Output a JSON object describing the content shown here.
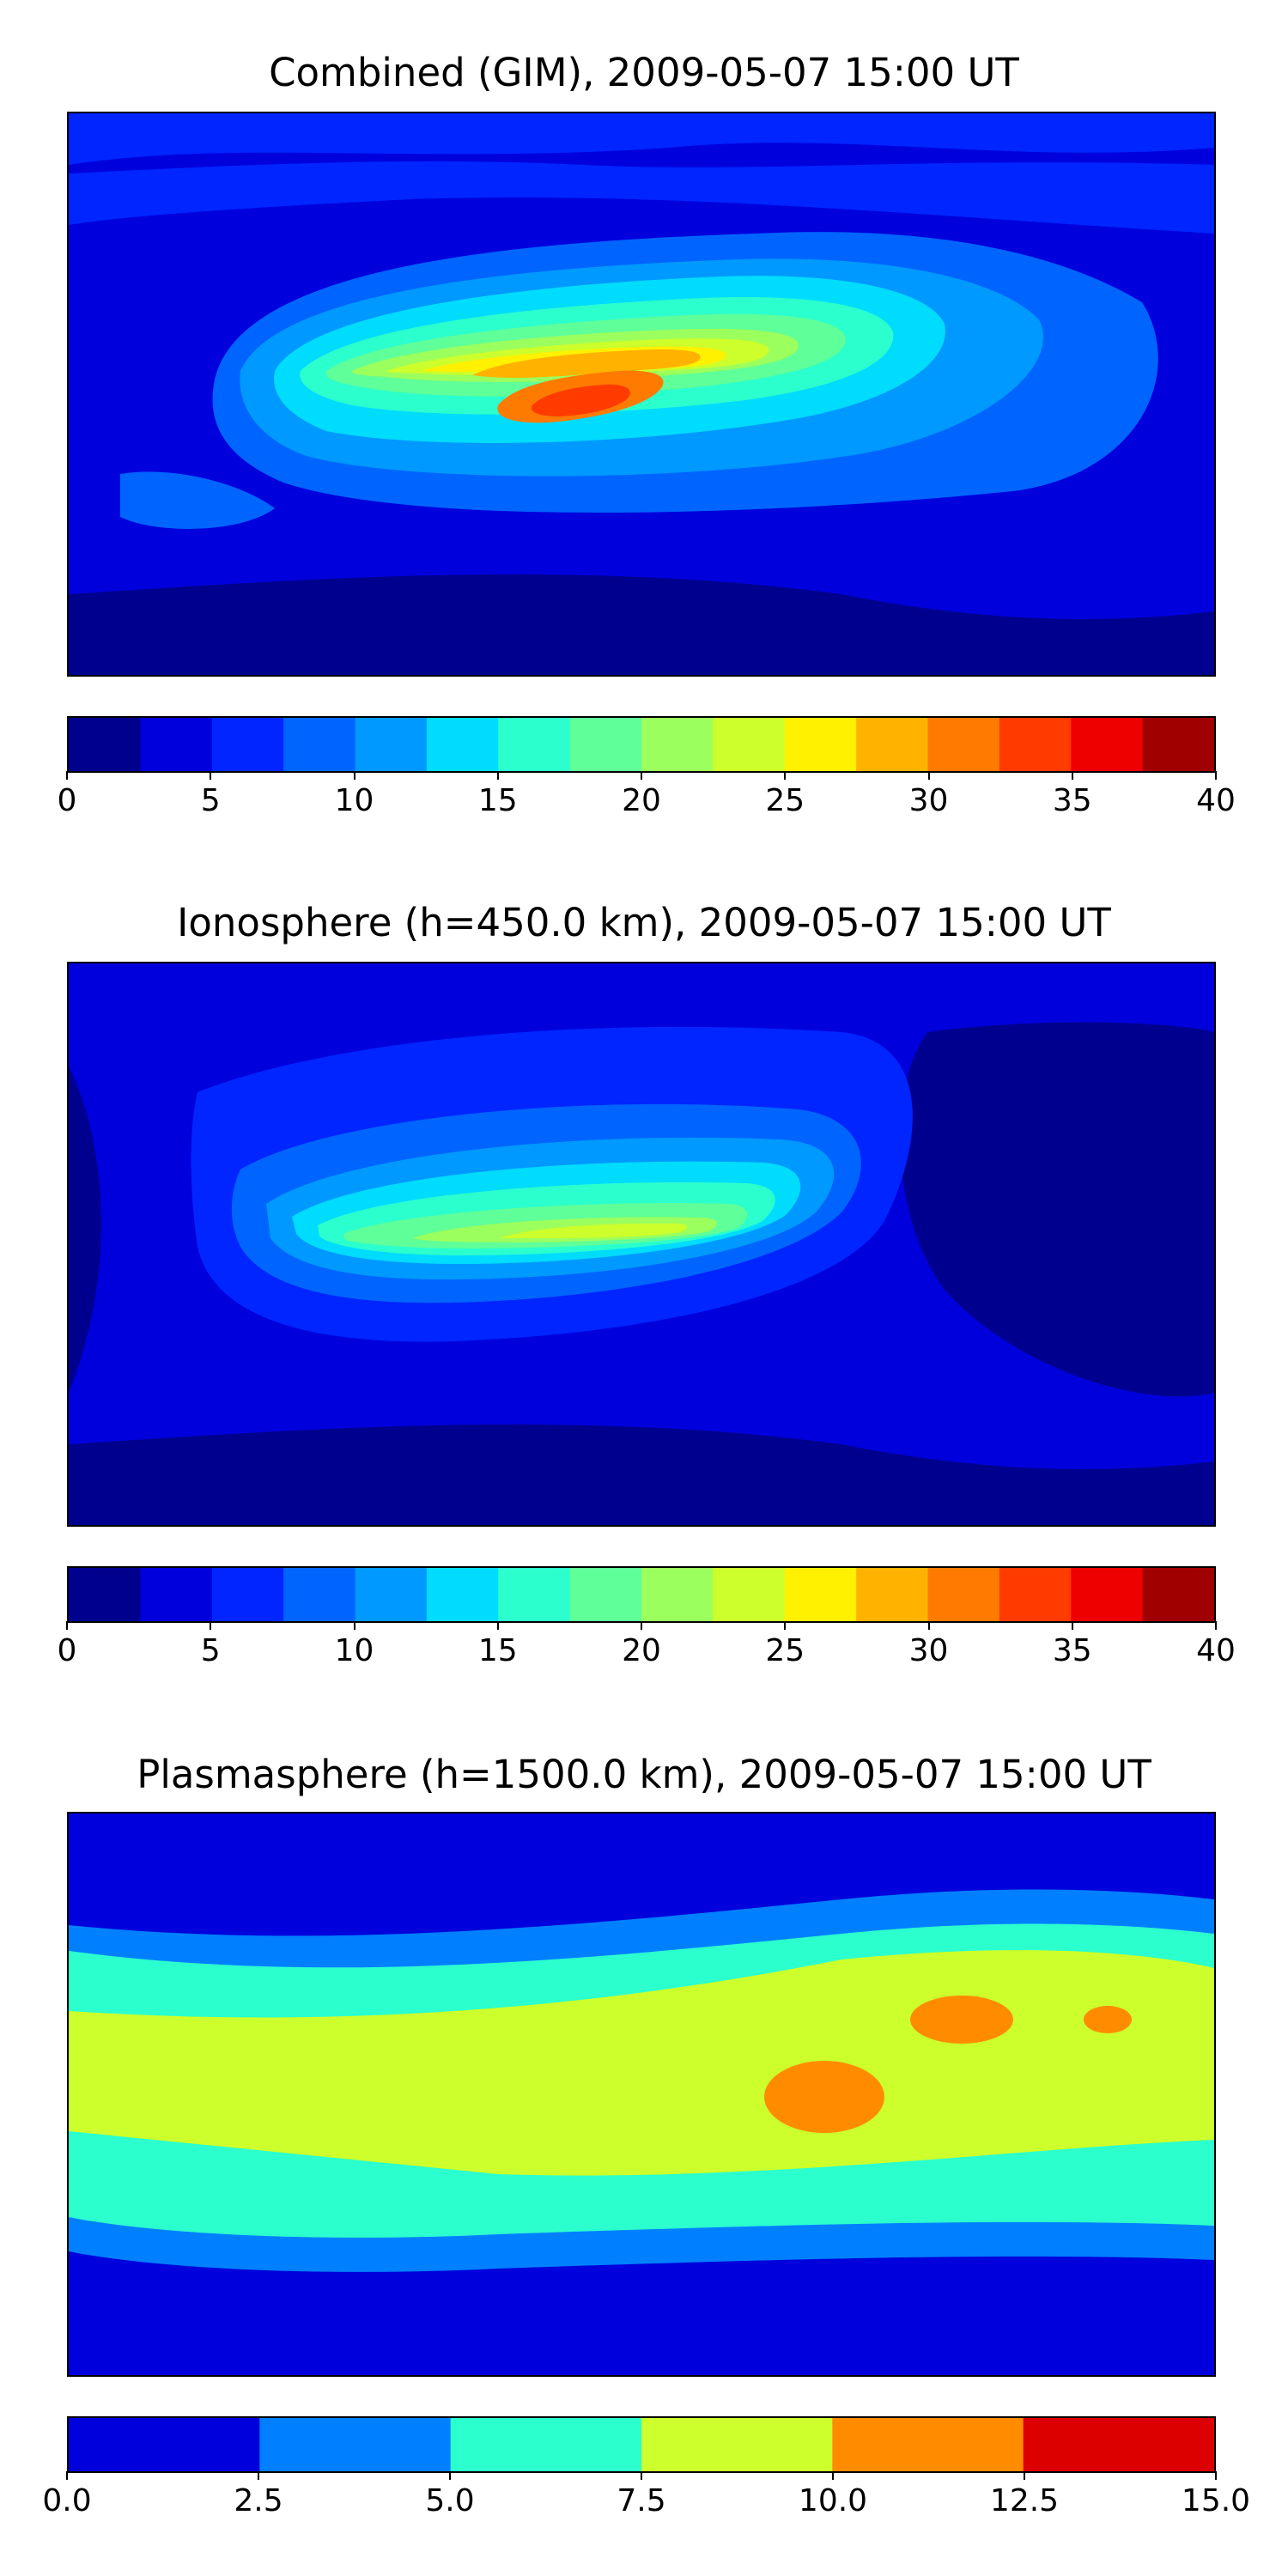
{
  "chart_data": [
    {
      "type": "heatmap",
      "title": "Combined (GIM), 2009-05-07 15:00 UT",
      "colorbar": {
        "levels": [
          0,
          2.5,
          5,
          7.5,
          10,
          12.5,
          15,
          17.5,
          20,
          22.5,
          25,
          27.5,
          30,
          32.5,
          35,
          37.5,
          40
        ],
        "colors": [
          "#00008f",
          "#0000dd",
          "#0025ff",
          "#0065ff",
          "#0099ff",
          "#00dcfe",
          "#2bffcd",
          "#5fff99",
          "#9bff5d",
          "#ccff2b",
          "#fff100",
          "#ffb300",
          "#ff7a00",
          "#ff3b00",
          "#ef0000",
          "#a10000"
        ],
        "ticks": [
          0,
          5,
          10,
          15,
          20,
          25,
          30,
          35,
          40
        ],
        "tick_labels": [
          "0",
          "5",
          "10",
          "15",
          "20",
          "25",
          "30",
          "35",
          "40"
        ]
      },
      "regions": [
        {
          "lon": -25,
          "lat": -10,
          "value": 32
        },
        {
          "lon": 10,
          "lat": 18,
          "value": 29
        },
        {
          "lon": 40,
          "lat": 10,
          "value": 24
        }
      ]
    },
    {
      "type": "heatmap",
      "title": "Ionosphere  (h=450.0 km), 2009-05-07 15:00 UT",
      "colorbar": {
        "levels": [
          0,
          2.5,
          5,
          7.5,
          10,
          12.5,
          15,
          17.5,
          20,
          22.5,
          25,
          27.5,
          30,
          32.5,
          35,
          37.5,
          40
        ],
        "colors": [
          "#00008f",
          "#0000dd",
          "#0025ff",
          "#0065ff",
          "#0099ff",
          "#00dcfe",
          "#2bffcd",
          "#5fff99",
          "#9bff5d",
          "#ccff2b",
          "#fff100",
          "#ffb300",
          "#ff7a00",
          "#ff3b00",
          "#ef0000",
          "#a10000"
        ],
        "ticks": [
          0,
          5,
          10,
          15,
          20,
          25,
          30,
          35,
          40
        ],
        "tick_labels": [
          "0",
          "5",
          "10",
          "15",
          "20",
          "25",
          "30",
          "35",
          "40"
        ]
      },
      "regions": [
        {
          "lon": 0,
          "lat": 5,
          "value": 22
        },
        {
          "lon": -60,
          "lat": -5,
          "value": 20
        }
      ]
    },
    {
      "type": "heatmap",
      "title": "Plasmasphere (h=1500.0 km), 2009-05-07 15:00 UT",
      "colorbar": {
        "levels": [
          0,
          2.5,
          5,
          7.5,
          10,
          12.5,
          15
        ],
        "colors": [
          "#0000dd",
          "#0080ff",
          "#2bffcd",
          "#ccff2b",
          "#ff8c00",
          "#dd0000"
        ],
        "ticks": [
          0,
          2.5,
          5,
          7.5,
          10,
          12.5,
          15
        ],
        "tick_labels": [
          "0.0",
          "2.5",
          "5.0",
          "7.5",
          "10.0",
          "12.5",
          "15.0"
        ]
      },
      "regions": [
        {
          "lon": 45,
          "lat": -5,
          "value": 10.5
        },
        {
          "lon": 95,
          "lat": 25,
          "value": 10.5
        },
        {
          "lon": 130,
          "lat": 15,
          "value": 10.3
        }
      ]
    }
  ]
}
